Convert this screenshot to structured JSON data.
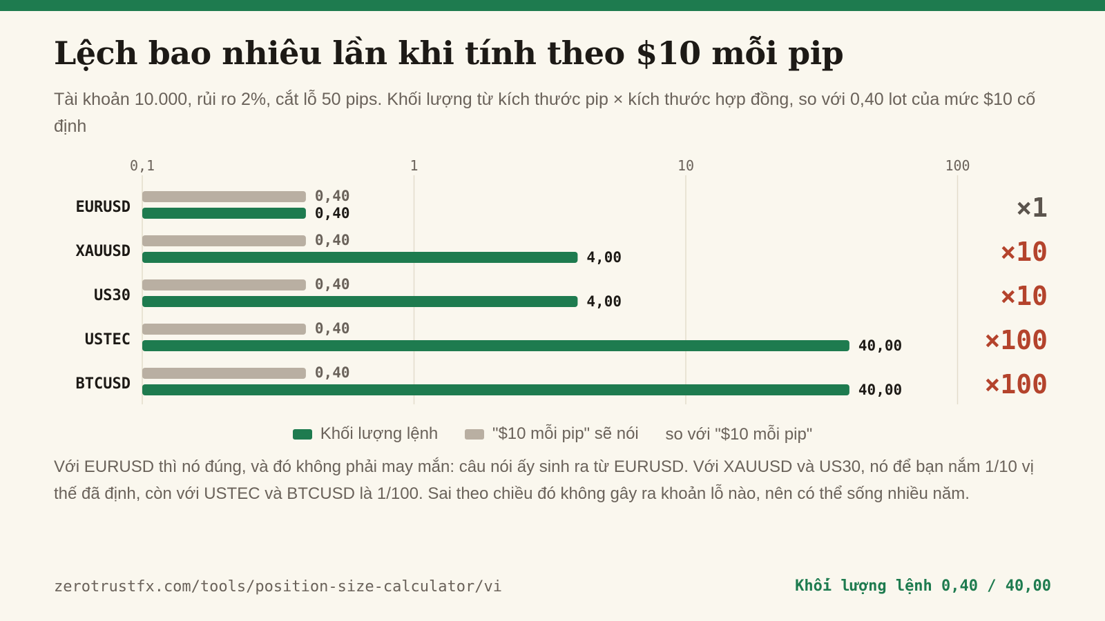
{
  "title": "Lệch bao nhiêu lần khi tính theo $10 mỗi pip",
  "subtitle": "Tài khoản 10.000, rủi ro 2%, cắt lỗ 50 pips. Khối lượng từ kích thước pip × kích thước hợp đồng, so với 0,40 lot của mức $10 cố định",
  "legend": {
    "lot": "Khối lượng lệnh",
    "ten": "\"$10 mỗi pip\" sẽ nói",
    "ratio": "so với \"$10 mỗi pip\""
  },
  "note": "Với EURUSD thì nó đúng, và đó không phải may mắn: câu nói ấy sinh ra từ EURUSD. Với XAUUSD và US30, nó để bạn nắm 1/10 vị thế đã định, còn với USTEC và BTCUSD là 1/100. Sai theo chiều đó không gây ra khoản lỗ nào, nên có thể sống nhiều năm.",
  "footer": {
    "url": "zerotrustfx.com/tools/position-size-calculator/vi",
    "tag": "Khối lượng lệnh 0,40 / 40,00"
  },
  "colors": {
    "accent": "#1e7b4f",
    "ten_dollar_bar": "#b9afa2",
    "ratio_neutral": "#5b544d",
    "ratio_warn": "#b4432c"
  },
  "chart_data": {
    "type": "bar",
    "orientation": "horizontal",
    "x_scale": "log",
    "xlim": [
      0.1,
      100
    ],
    "x_ticks": [
      0.1,
      1,
      10,
      100
    ],
    "x_tick_labels": [
      "0,1",
      "1",
      "10",
      "100"
    ],
    "categories": [
      "EURUSD",
      "XAUUSD",
      "US30",
      "USTEC",
      "BTCUSD"
    ],
    "series": [
      {
        "name": "\"$10 mỗi pip\" sẽ nói",
        "values": [
          0.4,
          0.4,
          0.4,
          0.4,
          0.4
        ],
        "labels": [
          "0,40",
          "0,40",
          "0,40",
          "0,40",
          "0,40"
        ]
      },
      {
        "name": "Khối lượng lệnh",
        "values": [
          0.4,
          4,
          4,
          40,
          40
        ],
        "labels": [
          "0,40",
          "4,00",
          "4,00",
          "40,00",
          "40,00"
        ]
      }
    ],
    "ratios": [
      "×1",
      "×10",
      "×10",
      "×100",
      "×100"
    ],
    "grid": true,
    "legend_position": "bottom"
  }
}
